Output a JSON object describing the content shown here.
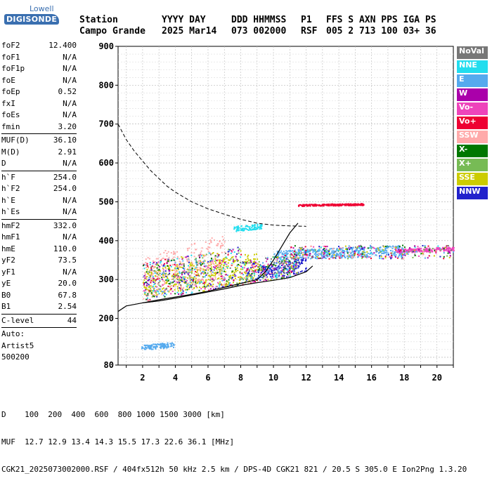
{
  "logo": {
    "line1": "Lowell",
    "line2": "DIGISONDE"
  },
  "header": {
    "labels": [
      "Station",
      "YYYY DAY",
      "DDD HHMMSS",
      "P1",
      "FFS S AXN PPS IGA PS"
    ],
    "values": [
      "Campo Grande",
      "2025 Mar14",
      "073 002000",
      "RSF",
      "005 2 713 100 03+ 36"
    ]
  },
  "params": [
    {
      "k": "foF2",
      "v": "12.400"
    },
    {
      "k": "foF1",
      "v": "N/A"
    },
    {
      "k": "foF1p",
      "v": "N/A"
    },
    {
      "k": "foE",
      "v": "N/A"
    },
    {
      "k": "foEp",
      "v": "0.52"
    },
    {
      "k": "fxI",
      "v": "N/A"
    },
    {
      "k": "foEs",
      "v": "N/A"
    },
    {
      "k": "fmin",
      "v": "3.20",
      "sep": true
    },
    {
      "k": "MUF(D)",
      "v": "36.10"
    },
    {
      "k": "M(D)",
      "v": "2.91"
    },
    {
      "k": "D",
      "v": "N/A",
      "sep": true
    },
    {
      "k": "h`F",
      "v": "254.0"
    },
    {
      "k": "h`F2",
      "v": "254.0"
    },
    {
      "k": "h`E",
      "v": "N/A"
    },
    {
      "k": "h`Es",
      "v": "N/A",
      "sep": true
    },
    {
      "k": "hmF2",
      "v": "332.0"
    },
    {
      "k": "hmF1",
      "v": "N/A"
    },
    {
      "k": "hmE",
      "v": "110.0"
    },
    {
      "k": "yF2",
      "v": "73.5"
    },
    {
      "k": "yF1",
      "v": "N/A"
    },
    {
      "k": "yE",
      "v": "20.0"
    },
    {
      "k": "B0",
      "v": "67.8"
    },
    {
      "k": "B1",
      "v": "2.54",
      "sep": true
    },
    {
      "k": "C-level",
      "v": "44",
      "sep": true
    }
  ],
  "autoscale": [
    "Auto:",
    "Artist5",
    "500200"
  ],
  "legend": [
    {
      "label": "NoVal",
      "color": "#777777"
    },
    {
      "label": "NNE",
      "color": "#22ddee"
    },
    {
      "label": "E",
      "color": "#55aaee"
    },
    {
      "label": "W",
      "color": "#aa00aa"
    },
    {
      "label": "Vo-",
      "color": "#ee44bb"
    },
    {
      "label": "Vo+",
      "color": "#ee0033"
    },
    {
      "label": "SSW",
      "color": "#ffaaaa"
    },
    {
      "label": "X-",
      "color": "#007700"
    },
    {
      "label": "X+",
      "color": "#77bb55"
    },
    {
      "label": "SSE",
      "color": "#cccc00"
    },
    {
      "label": "NNW",
      "color": "#2222cc"
    }
  ],
  "footer": {
    "line1": "D    100  200  400  600  800 1000 1500 3000 [km]",
    "line2": "MUF  12.7 12.9 13.4 14.3 15.5 17.3 22.6 36.1 [MHz]",
    "line3": "CGK21_2025073002000.RSF / 404fx512h 50 kHz 2.5 km / DPS-4D CGK21 821 / 20.5 S 305.0 E Ion2Png 1.3.20"
  },
  "chart_data": {
    "type": "scatter",
    "xlim": [
      0.5,
      21
    ],
    "ylim": [
      80,
      900
    ],
    "xticks": [
      2,
      4,
      6,
      8,
      10,
      12,
      14,
      16,
      18,
      20
    ],
    "yticks": [
      80,
      200,
      300,
      400,
      500,
      600,
      700,
      800,
      900
    ],
    "grid": true,
    "legend_position": "right",
    "profile_curve": {
      "x": [
        0.5,
        1,
        1.5,
        2,
        2.5,
        3,
        3.5,
        4,
        5,
        6,
        7,
        8,
        9,
        10,
        11,
        12
      ],
      "y": [
        700,
        660,
        630,
        605,
        580,
        560,
        540,
        525,
        500,
        482,
        468,
        455,
        445,
        440,
        438,
        437
      ]
    },
    "profile_lines": [
      {
        "x": [
          0.5,
          1,
          2,
          3,
          4,
          5,
          6,
          7,
          8,
          9,
          10,
          11,
          12,
          12.4
        ],
        "y": [
          218,
          232,
          240,
          245,
          252,
          260,
          268,
          276,
          285,
          292,
          298,
          305,
          320,
          335
        ]
      },
      {
        "x": [
          2,
          3,
          4,
          5,
          6,
          7,
          8,
          9,
          9.5,
          10,
          10.5,
          11,
          11.5
        ],
        "y": [
          240,
          248,
          255,
          262,
          270,
          280,
          290,
          300,
          320,
          350,
          385,
          420,
          445
        ]
      }
    ],
    "traces": [
      {
        "name": "E",
        "color": "#55aaee",
        "x0": 1.9,
        "x1": 3.9,
        "y0": 120,
        "y1": 140
      },
      {
        "name": "SSE",
        "color": "#cccc00",
        "x0": 2,
        "x1": 9,
        "y0": 260,
        "y1": 370
      },
      {
        "name": "SSW",
        "color": "#ffaaaa",
        "x0": 2,
        "x1": 7,
        "y0": 250,
        "y1": 420
      },
      {
        "name": "NNE",
        "color": "#22ddee",
        "x0": 7.5,
        "x1": 9.3,
        "y0": 425,
        "y1": 445
      },
      {
        "name": "NNW",
        "color": "#2222cc",
        "x0": 9,
        "x1": 12,
        "y0": 300,
        "y1": 360
      },
      {
        "name": "Vo+",
        "color": "#ee0033",
        "x0": 11.5,
        "x1": 15.5,
        "y0": 490,
        "y1": 497
      },
      {
        "name": "E",
        "color": "#55aaee",
        "x0": 10,
        "x1": 18,
        "y0": 350,
        "y1": 390
      },
      {
        "name": "Vo-",
        "color": "#ee44bb",
        "x0": 17.5,
        "x1": 21,
        "y0": 370,
        "y1": 385
      }
    ]
  }
}
